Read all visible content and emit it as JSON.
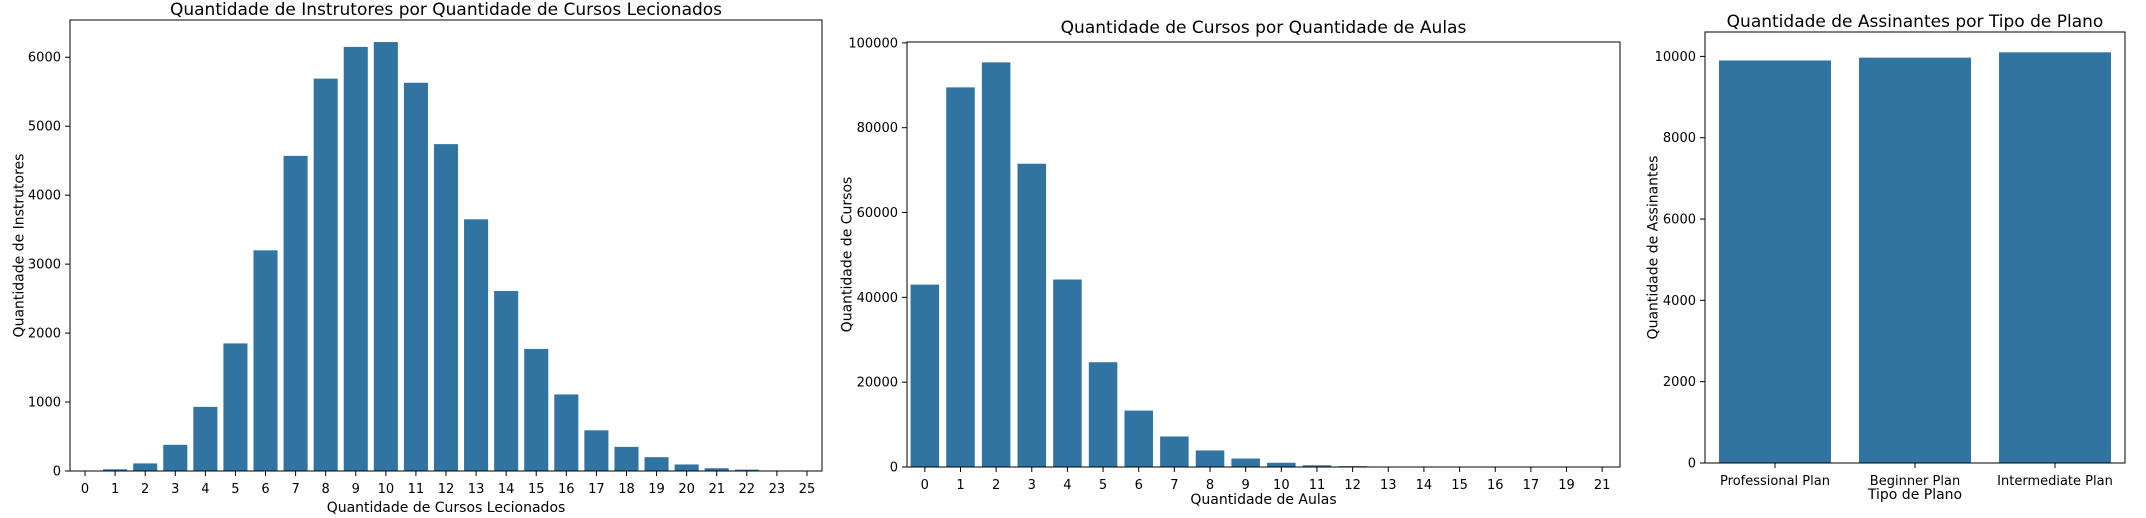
{
  "chart_data": [
    {
      "type": "bar",
      "title": "Quantidade de Instrutores por Quantidade de Cursos Lecionados",
      "xlabel": "Quantidade de Cursos Lecionados",
      "ylabel": "Quantidade de Instrutores",
      "categories": [
        "0",
        "1",
        "2",
        "3",
        "4",
        "5",
        "6",
        "7",
        "8",
        "9",
        "10",
        "11",
        "12",
        "13",
        "14",
        "15",
        "16",
        "17",
        "18",
        "19",
        "20",
        "21",
        "22",
        "23",
        "25"
      ],
      "values": [
        2,
        25,
        110,
        380,
        930,
        1850,
        3200,
        4570,
        5690,
        6150,
        6220,
        5630,
        4740,
        3650,
        2610,
        1770,
        1110,
        590,
        350,
        200,
        95,
        40,
        20,
        4,
        1
      ],
      "yticks": [
        0,
        1000,
        2000,
        3000,
        4000,
        5000,
        6000
      ],
      "ylim": [
        0,
        6540
      ],
      "grid": false,
      "color": "#3274a1"
    },
    {
      "type": "bar",
      "title": "Quantidade de Cursos por Quantidade de Aulas",
      "xlabel": "Quantidade de Aulas",
      "ylabel": "Quantidade de Cursos",
      "categories": [
        "0",
        "1",
        "2",
        "3",
        "4",
        "5",
        "6",
        "7",
        "8",
        "9",
        "10",
        "11",
        "12",
        "13",
        "14",
        "15",
        "16",
        "17",
        "19",
        "21"
      ],
      "values": [
        43000,
        89500,
        95400,
        71500,
        44200,
        24700,
        13300,
        7200,
        3900,
        2000,
        1000,
        400,
        200,
        100,
        40,
        20,
        10,
        5,
        2,
        1
      ],
      "yticks": [
        0,
        20000,
        40000,
        60000,
        80000,
        100000
      ],
      "ylim": [
        0,
        100200
      ],
      "grid": false,
      "color": "#3274a1"
    },
    {
      "type": "bar",
      "title": "Quantidade de Assinantes por Tipo de Plano",
      "xlabel": "Tipo de Plano",
      "ylabel": "Quantidade de Assinantes",
      "categories": [
        "Professional Plan",
        "Beginner Plan",
        "Intermediate Plan"
      ],
      "values": [
        9900,
        9970,
        10100
      ],
      "yticks": [
        0,
        2000,
        4000,
        6000,
        8000,
        10000
      ],
      "ylim": [
        0,
        10600
      ],
      "grid": false,
      "color": "#3274a1"
    }
  ]
}
